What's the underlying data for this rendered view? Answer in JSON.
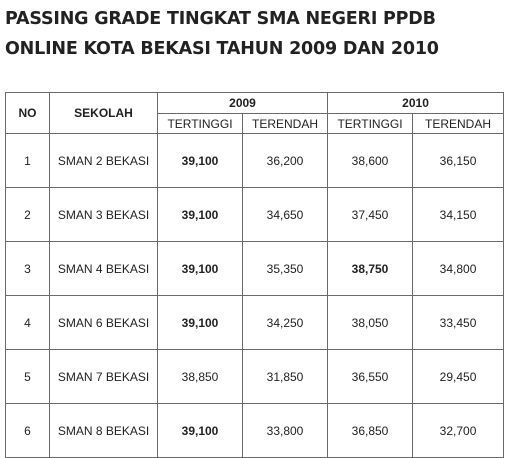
{
  "title": {
    "line1": "PASSING GRADE TINGKAT SMA NEGERI PPDB",
    "line2": "ONLINE KOTA BEKASI TAHUN 2009 DAN 2010"
  },
  "table": {
    "headers": {
      "no": "NO",
      "sekolah": "SEKOLAH",
      "year_2009": "2009",
      "year_2010": "2010",
      "tertinggi_2009": "TERTINGGI",
      "terendah_2009": "TERENDAH",
      "tertinggi_2010": "TERTINGGI",
      "terendah_2010": "TERENDAH"
    },
    "rows": [
      {
        "no": "1",
        "sekolah": "SMAN 2 BEKASI",
        "t2009": "39,100",
        "r2009": "36,200",
        "t2010": "38,600",
        "r2010": "36,150"
      },
      {
        "no": "2",
        "sekolah": "SMAN 3 BEKASI",
        "t2009": "39,100",
        "r2009": "34,650",
        "t2010": "37,450",
        "r2010": "34,150"
      },
      {
        "no": "3",
        "sekolah": "SMAN 4 BEKASI",
        "t2009": "39,100",
        "r2009": "35,350",
        "t2010": "38,750",
        "r2010": "34,800"
      },
      {
        "no": "4",
        "sekolah": "SMAN 6 BEKASI",
        "t2009": "39,100",
        "r2009": "34,250",
        "t2010": "38,050",
        "r2010": "33,450"
      },
      {
        "no": "5",
        "sekolah": "SMAN 7 BEKASI",
        "t2009": "38,850",
        "r2009": "31,850",
        "t2010": "36,550",
        "r2010": "29,450"
      },
      {
        "no": "6",
        "sekolah": "SMAN 8 BEKASI",
        "t2009": "39,100",
        "r2009": "33,800",
        "t2010": "36,850",
        "r2010": "32,700"
      }
    ]
  }
}
